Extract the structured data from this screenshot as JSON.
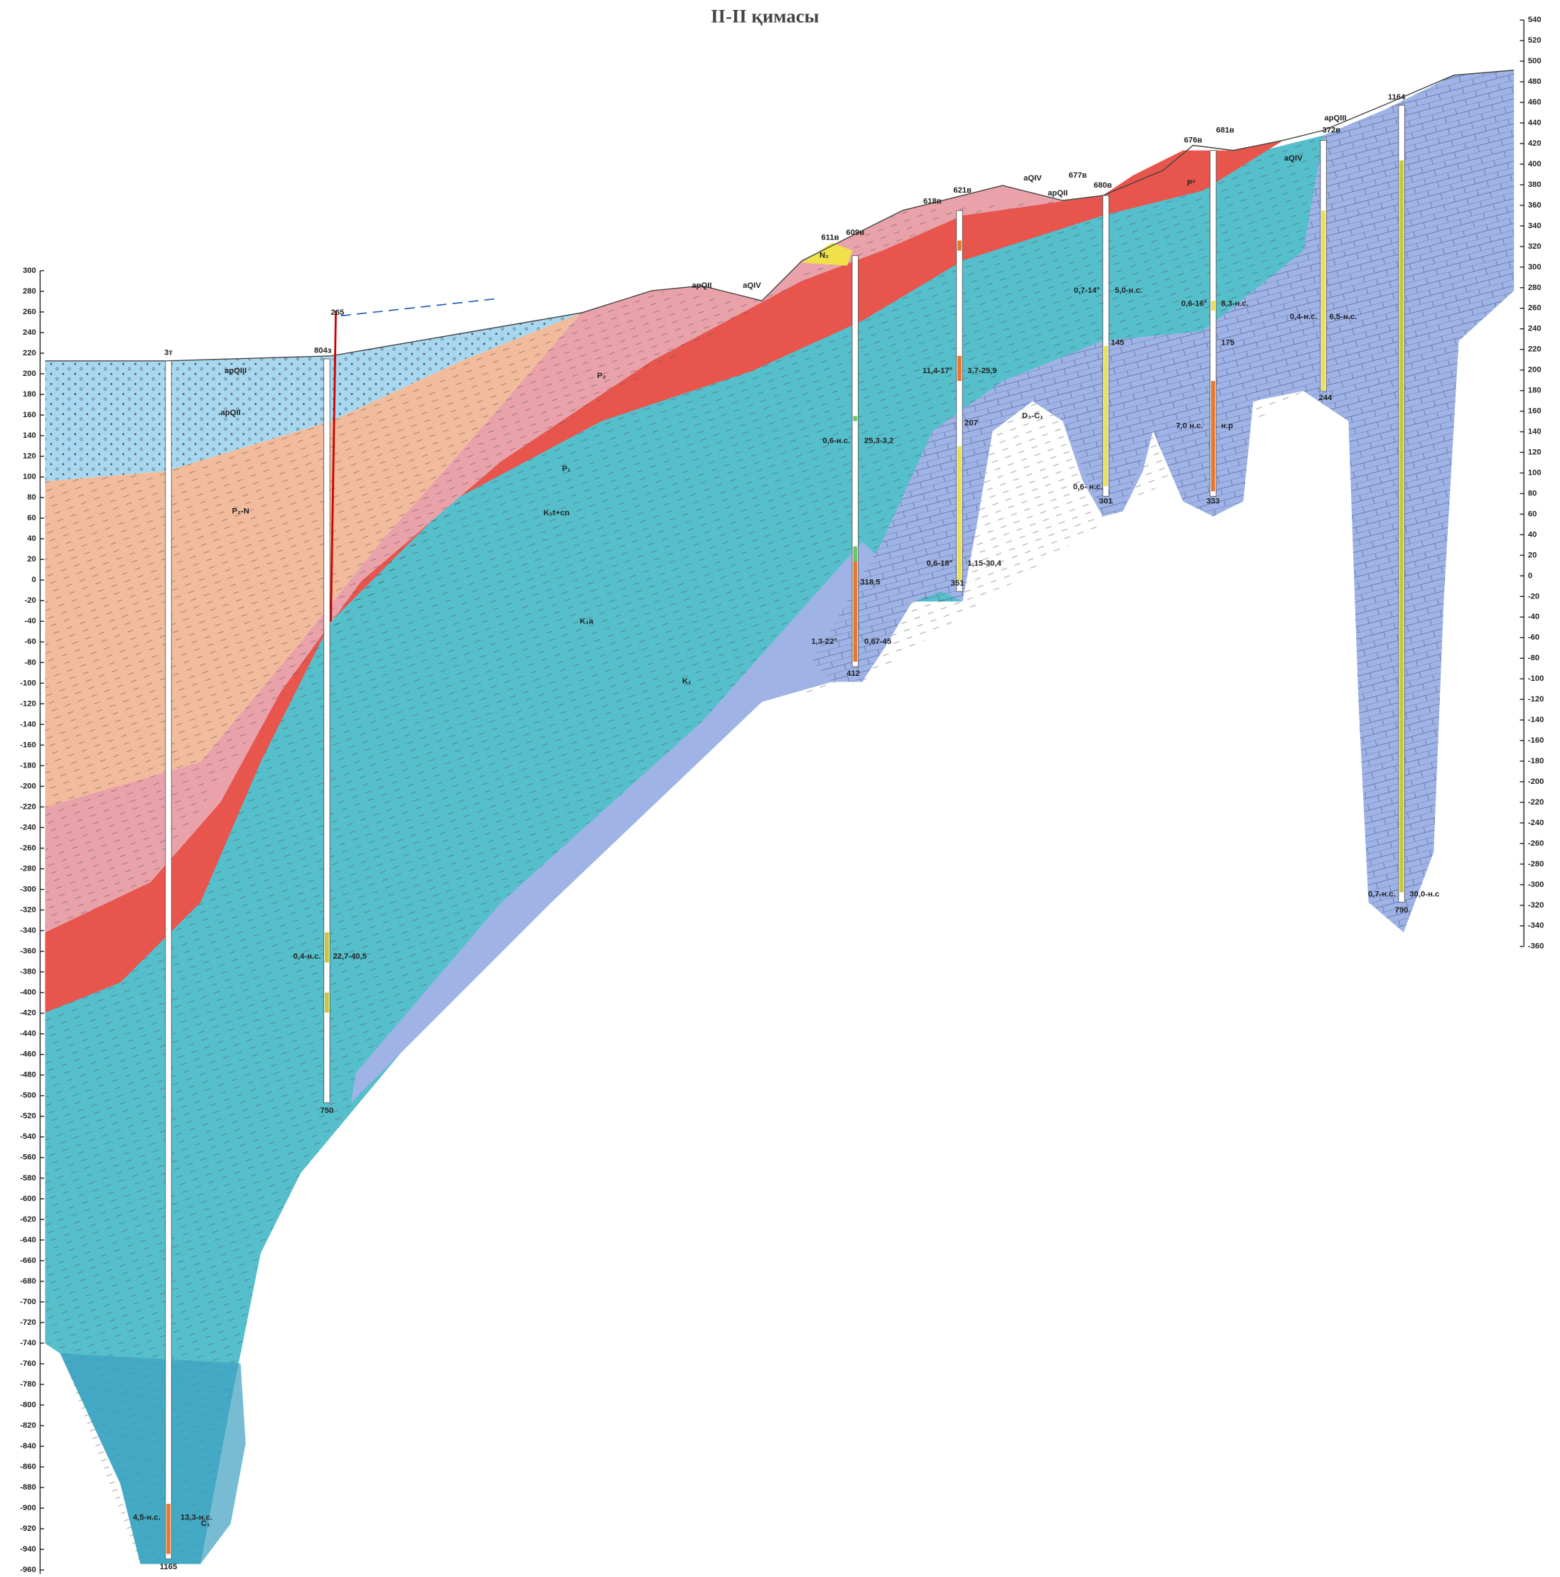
{
  "header": {
    "title": "II-II қимасы"
  },
  "left_axis": {
    "ticks": [
      300,
      280,
      260,
      240,
      220,
      200,
      180,
      160,
      140,
      120,
      100,
      80,
      60,
      40,
      20,
      0,
      -20,
      -40,
      -60,
      -80,
      -100,
      -120,
      -140,
      -160,
      -180,
      -200,
      -220,
      -240,
      -260,
      -280,
      -300,
      -320,
      -340,
      -360,
      -380,
      -400,
      -420,
      -440,
      -460,
      -480,
      -500,
      -520,
      -540,
      -560,
      -580,
      -600,
      -620,
      -640,
      -660,
      -680,
      -700,
      -720,
      -740,
      -760,
      -780,
      -800,
      -820,
      -840,
      -860,
      -880,
      -900,
      -920,
      -940,
      -960
    ]
  },
  "right_axis": {
    "ticks": [
      540,
      520,
      500,
      480,
      460,
      440,
      420,
      400,
      380,
      360,
      340,
      320,
      300,
      280,
      260,
      240,
      220,
      200,
      180,
      160,
      140,
      120,
      100,
      80,
      60,
      40,
      20,
      0,
      -20,
      -40,
      -60,
      -80,
      -100,
      -120,
      -140,
      -160,
      -180,
      -200,
      -220,
      -240,
      -260,
      -280,
      -300,
      -320,
      -340,
      -360
    ]
  },
  "wells": [
    {
      "label": "3т",
      "depth": "1165",
      "notes": [
        "4,5-н.с.",
        "13,3-н.с."
      ]
    },
    {
      "label": "804з",
      "depth": "750",
      "notes": [
        "0,4-н.с.",
        "22,7-40,5",
        "265"
      ]
    },
    {
      "label": "609в",
      "depth": "412",
      "notes": [
        "1,3-22°",
        "0,67-45",
        "0,6-н.с.",
        "25,3-3,2",
        "318,5"
      ]
    },
    {
      "label": "621в",
      "depth": "351",
      "notes": [
        "0,6-18°",
        "1,15-30,4",
        "11,4-17°",
        "3,7-25,9",
        "207"
      ]
    },
    {
      "label": "680в",
      "depth": "301",
      "notes": [
        "0,7-14°",
        "5,0-н.с.",
        "145",
        "0,6- н.с."
      ]
    },
    {
      "label": "681в",
      "depth": "333",
      "notes": [
        "0,6-16°",
        "8,3-н.с.",
        "175",
        "7,0 н.с.",
        "н.р"
      ]
    },
    {
      "label": "372в",
      "depth": "244",
      "notes": [
        "0,4-н.с.",
        "6,5-н.с."
      ]
    },
    {
      "label": "1164",
      "depth": "790",
      "notes": [
        "0,7-н.с.",
        "30,0-н.с"
      ]
    }
  ],
  "other_wells": [
    "611в",
    "618в",
    "677в",
    "676в"
  ],
  "layers": [
    "apQIII",
    "apQII",
    "P₂-N",
    "P₂",
    "P₁",
    "K₂t+cn",
    "K₁a",
    "K₁",
    "C₁",
    "D₃-C₁",
    "N₂",
    "apQII",
    "aQIV",
    "aQIV",
    "apQII",
    "aQIV",
    "apQIII",
    "P²"
  ]
}
